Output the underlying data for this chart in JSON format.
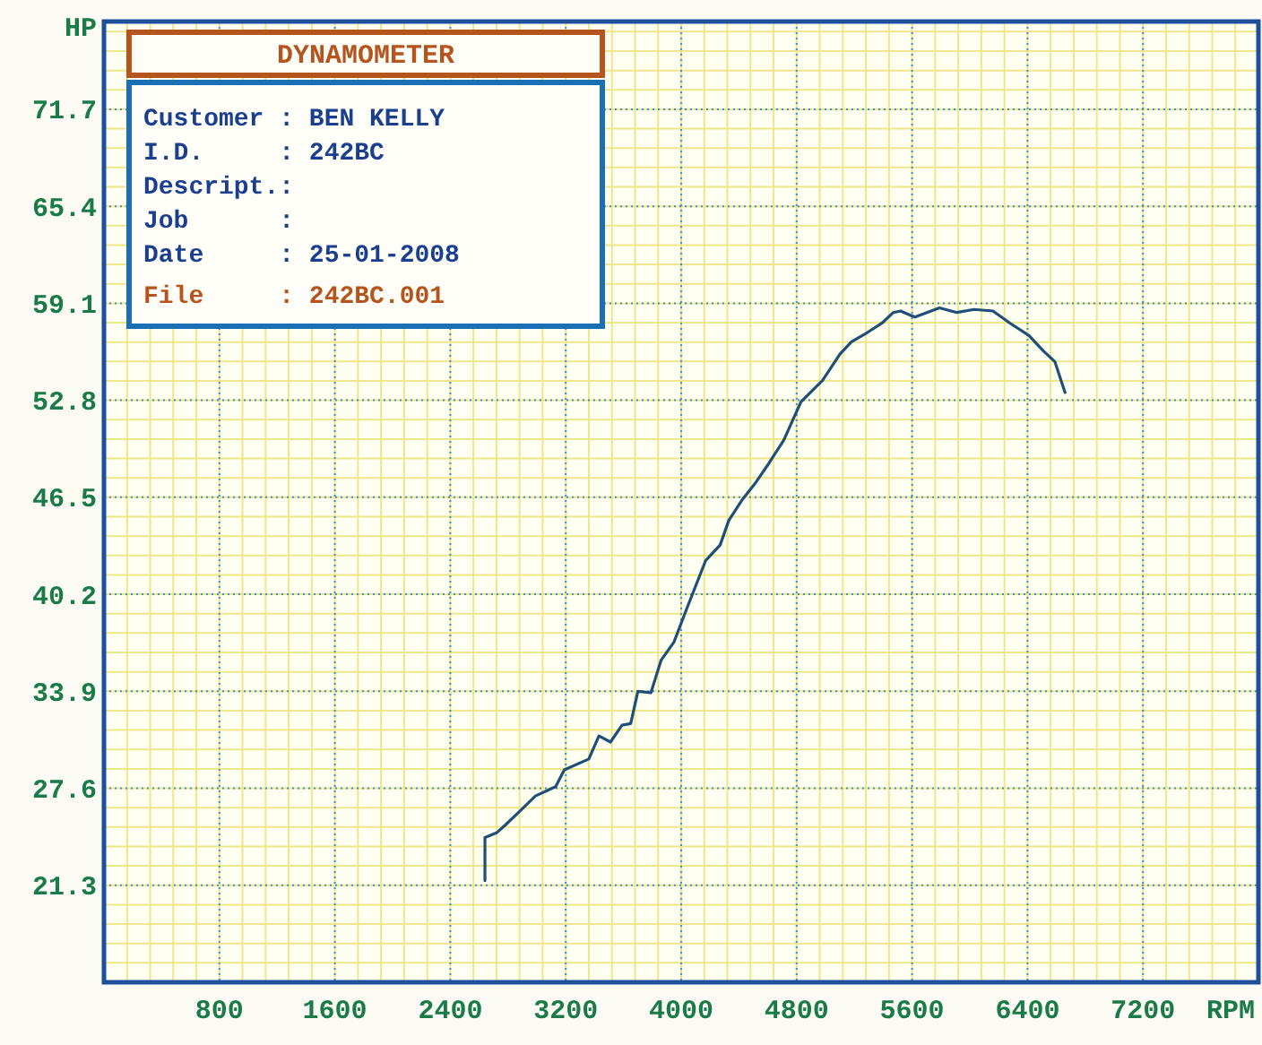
{
  "chart_data": {
    "type": "line",
    "title": "DYNAMOMETER",
    "xlabel": "RPM",
    "ylabel": "HP",
    "annotations": [
      "Customer : BEN KELLY",
      "I.D.     : 242BC",
      "Descript.:",
      "Job      :",
      "Date     : 25-01-2008",
      "File     : 242BC.001"
    ],
    "xlim": [
      0,
      8000
    ],
    "ylim": [
      15.0,
      77.4
    ],
    "xticks": [
      800,
      1600,
      2400,
      3200,
      4000,
      4800,
      5600,
      6400,
      7200
    ],
    "yticks": [
      21.3,
      27.6,
      33.9,
      40.2,
      46.5,
      52.8,
      59.1,
      65.4,
      71.7
    ],
    "grid": true,
    "marker": "none",
    "line_style": "solid",
    "series": [
      {
        "color": "#1f4e79",
        "x": [
          2640,
          2640,
          2720,
          2780,
          2880,
          2990,
          3130,
          3190,
          3360,
          3430,
          3510,
          3590,
          3650,
          3700,
          3790,
          3860,
          3950,
          4040,
          4170,
          4270,
          4330,
          4420,
          4520,
          4600,
          4710,
          4830,
          4980,
          5100,
          5180,
          5290,
          5390,
          5470,
          5520,
          5620,
          5790,
          5910,
          6030,
          6160,
          6280,
          6410,
          6510,
          6590,
          6660
        ],
        "values": [
          21.6,
          24.4,
          24.7,
          25.2,
          26.1,
          27.1,
          27.7,
          28.8,
          29.5,
          31.0,
          30.6,
          31.7,
          31.8,
          33.9,
          33.8,
          35.9,
          37.1,
          39.3,
          42.4,
          43.4,
          45.0,
          46.3,
          47.5,
          48.6,
          50.2,
          52.7,
          54.1,
          55.8,
          56.6,
          57.2,
          57.8,
          58.5,
          58.6,
          58.2,
          58.8,
          58.5,
          58.7,
          58.6,
          57.8,
          57.0,
          56.0,
          55.3,
          53.3
        ]
      }
    ]
  }
}
